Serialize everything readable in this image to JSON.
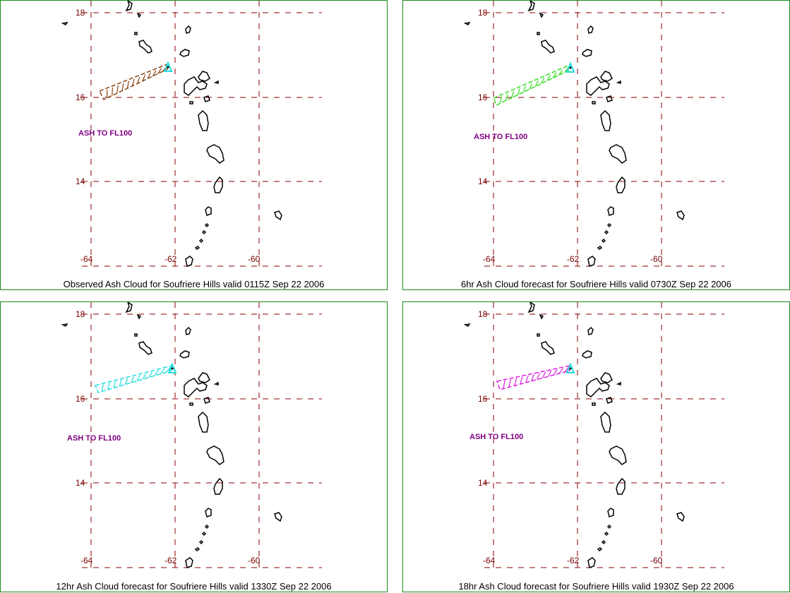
{
  "panels": [
    {
      "caption": "Observed Ash Cloud for Soufriere  Hills valid 0115Z Sep 22 2006",
      "ash_label": "ASH TO FL100",
      "cloud_color": "#8b4513"
    },
    {
      "caption": "6hr Ash Cloud forecast for Soufriere  Hills valid 0730Z Sep 22 2006",
      "ash_label": "ASH TO FL100",
      "cloud_color": "#33dd22"
    },
    {
      "caption": "12hr Ash Cloud forecast for Soufriere  Hills valid 1330Z Sep 22 2006",
      "ash_label": "ASH TO FL100",
      "cloud_color": "#22dddd"
    },
    {
      "caption": "18hr Ash Cloud forecast for Soufriere  Hills valid 1930Z Sep 22 2006",
      "ash_label": "ASH TO FL100",
      "cloud_color": "#dd22dd"
    }
  ],
  "map": {
    "lat_labels": [
      "18",
      "16",
      "14"
    ],
    "lon_labels": [
      "-64",
      "-62",
      "-60"
    ],
    "grid_color": "#8b0000",
    "volcano_marker_color": "#22dddd"
  }
}
